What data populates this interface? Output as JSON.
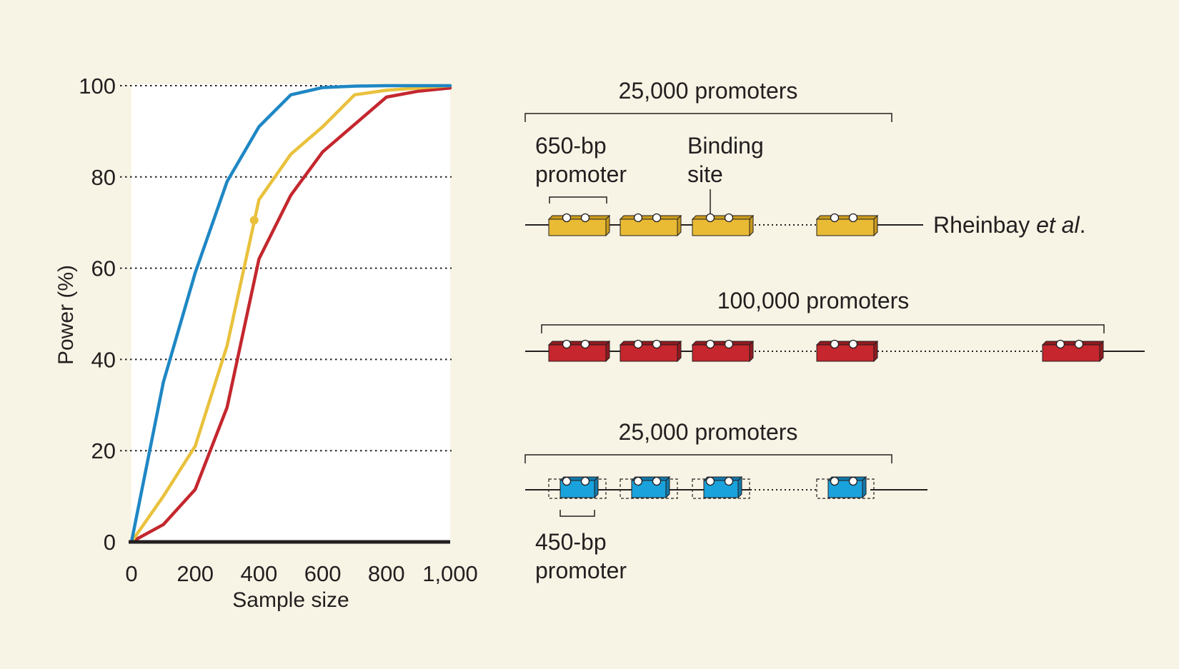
{
  "chart_data": {
    "type": "line",
    "xlabel": "Sample size",
    "ylabel": "Power (%)",
    "xlim": [
      0,
      1000
    ],
    "ylim": [
      0,
      100
    ],
    "x_ticks": [
      0,
      200,
      400,
      600,
      800,
      1000
    ],
    "x_tick_labels": [
      "0",
      "200",
      "400",
      "600",
      "800",
      "1,000"
    ],
    "y_ticks": [
      0,
      20,
      40,
      60,
      80,
      100
    ],
    "y_tick_labels": [
      "0",
      "20",
      "40",
      "60",
      "80",
      "100"
    ],
    "grid": "horizontal dotted",
    "series": [
      {
        "color": "#1f87c4",
        "x": [
          0,
          100,
          200,
          300,
          400,
          500,
          600,
          700,
          800,
          900,
          1000
        ],
        "y": [
          0,
          35,
          59,
          79,
          91,
          98,
          99.6,
          99.9,
          100,
          100,
          100
        ]
      },
      {
        "color": "#e9c13c",
        "x": [
          0,
          100,
          200,
          300,
          400,
          500,
          600,
          700,
          800,
          900,
          1000
        ],
        "y": [
          0,
          10,
          21,
          43,
          75,
          85,
          91,
          98,
          99,
          99.5,
          100
        ],
        "marker": {
          "x": 385,
          "y": 70.5
        }
      },
      {
        "color": "#c4272e",
        "x": [
          0,
          100,
          200,
          300,
          400,
          500,
          600,
          700,
          800,
          900,
          1000
        ],
        "y": [
          0,
          3.8,
          11.5,
          29.5,
          62,
          76,
          85.5,
          91.5,
          97.5,
          98.8,
          99.5
        ]
      }
    ]
  },
  "diagram": {
    "labels": {
      "top_count": "25,000 promoters",
      "promoter_650": [
        "650-bp",
        "promoter"
      ],
      "binding_site": [
        "Binding",
        "site"
      ],
      "rheinbay": "Rheinbay",
      "rheinbay_italic": "et al",
      "rheinbay_end": ".",
      "middle_count": "100,000 promoters",
      "bottom_count": "25,000 promoters",
      "promoter_450": [
        "450-bp",
        "promoter"
      ]
    },
    "colors": {
      "yellow_fill": "#e9bb35",
      "yellow_side": "#c99a1d",
      "red_fill": "#c6262d",
      "red_side": "#8f1b20",
      "blue_fill": "#1aa2dc",
      "blue_side": "#1379ab",
      "line": "#231f20",
      "panel": "#ffffff"
    }
  }
}
